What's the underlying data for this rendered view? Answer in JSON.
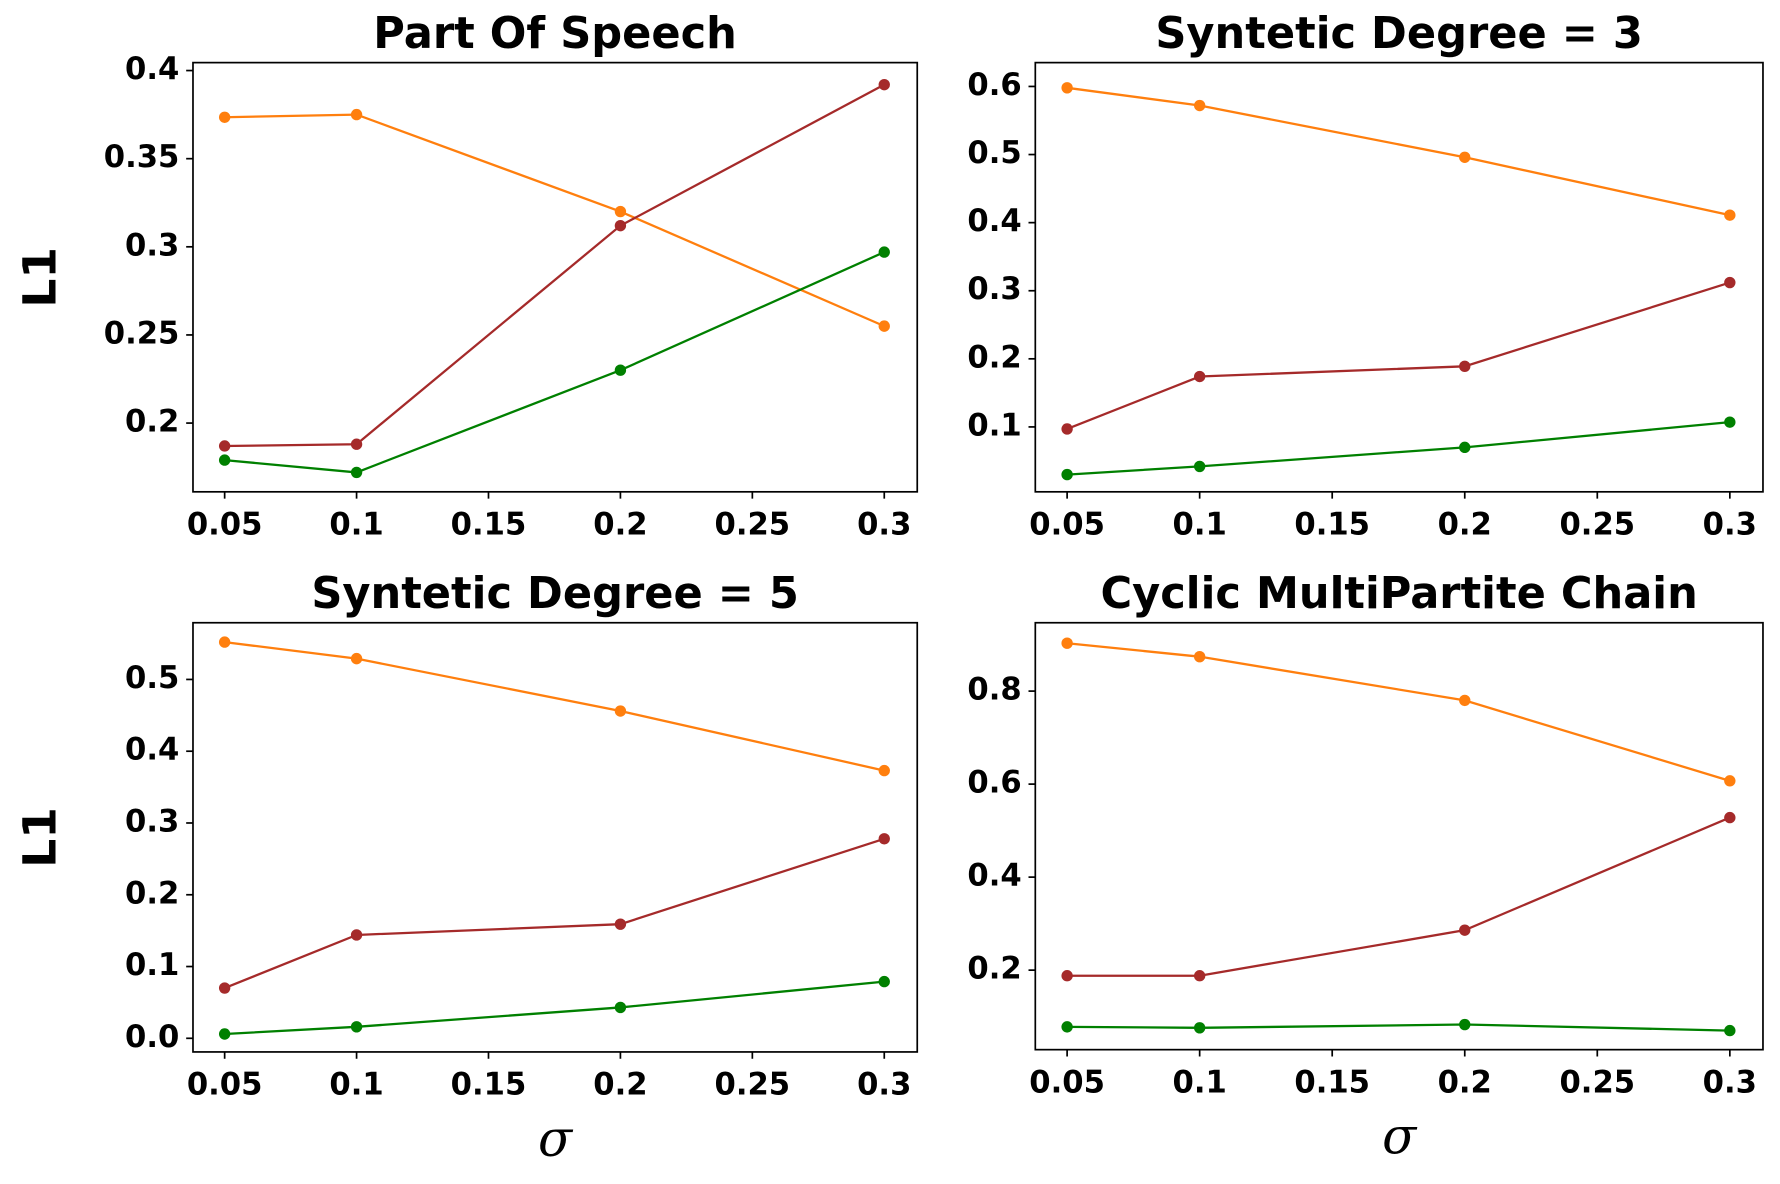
{
  "chart_data": [
    {
      "type": "line",
      "title": "Part Of Speech",
      "ylabel": "L1",
      "x": [
        0.05,
        0.1,
        0.2,
        0.3
      ],
      "series": [
        {
          "color": "#ff7f0e",
          "values": [
            0.3735,
            0.375,
            0.32,
            0.255
          ]
        },
        {
          "color": "#a52a2a",
          "values": [
            0.187,
            0.188,
            0.312,
            0.392
          ]
        },
        {
          "color": "#008000",
          "values": [
            0.179,
            0.172,
            0.23,
            0.297
          ]
        }
      ],
      "xlim": [
        0.038,
        0.3125
      ],
      "ylim": [
        0.161,
        0.4045
      ],
      "xticks": [
        0.05,
        0.1,
        0.15,
        0.2,
        0.25,
        0.3
      ],
      "yticks": [
        0.2,
        0.25,
        0.3,
        0.35,
        0.4
      ]
    },
    {
      "type": "line",
      "title": "Syntetic Degree = 3",
      "x": [
        0.05,
        0.1,
        0.2,
        0.3
      ],
      "series": [
        {
          "color": "#ff7f0e",
          "values": [
            0.598,
            0.572,
            0.496,
            0.411
          ]
        },
        {
          "color": "#a52a2a",
          "values": [
            0.097,
            0.174,
            0.189,
            0.312
          ]
        },
        {
          "color": "#008000",
          "values": [
            0.03,
            0.042,
            0.07,
            0.107
          ]
        }
      ],
      "xlim": [
        0.038,
        0.3125
      ],
      "ylim": [
        0.0047,
        0.635
      ],
      "xticks": [
        0.05,
        0.1,
        0.15,
        0.2,
        0.25,
        0.3
      ],
      "yticks": [
        0.1,
        0.2,
        0.3,
        0.4,
        0.5,
        0.6
      ]
    },
    {
      "type": "line",
      "title": "Syntetic Degree = 5",
      "ylabel": "L1",
      "xlabel": "σ",
      "x": [
        0.05,
        0.1,
        0.2,
        0.3
      ],
      "series": [
        {
          "color": "#ff7f0e",
          "values": [
            0.552,
            0.529,
            0.456,
            0.373
          ]
        },
        {
          "color": "#a52a2a",
          "values": [
            0.07,
            0.144,
            0.159,
            0.278
          ]
        },
        {
          "color": "#008000",
          "values": [
            0.006,
            0.016,
            0.043,
            0.079
          ]
        }
      ],
      "xlim": [
        0.038,
        0.3125
      ],
      "ylim": [
        -0.019,
        0.579
      ],
      "xticks": [
        0.05,
        0.1,
        0.15,
        0.2,
        0.25,
        0.3
      ],
      "yticks": [
        {
          "value": 0,
          "label": "0.0"
        },
        0.1,
        0.2,
        0.3,
        0.4,
        0.5
      ]
    },
    {
      "type": "line",
      "title": "Cyclic MultiPartite Chain",
      "xlabel": "σ",
      "x": [
        0.05,
        0.1,
        0.2,
        0.3
      ],
      "series": [
        {
          "color": "#ff7f0e",
          "values": [
            0.903,
            0.874,
            0.78,
            0.607
          ]
        },
        {
          "color": "#a52a2a",
          "values": [
            0.188,
            0.188,
            0.286,
            0.528
          ]
        },
        {
          "color": "#008000",
          "values": [
            0.078,
            0.076,
            0.083,
            0.07
          ]
        }
      ],
      "xlim": [
        0.038,
        0.3125
      ],
      "ylim": [
        0.029,
        0.947
      ],
      "xticks": [
        0.05,
        0.1,
        0.15,
        0.2,
        0.25,
        0.3
      ],
      "yticks": [
        0.2,
        0.4,
        0.6,
        0.8
      ]
    }
  ]
}
